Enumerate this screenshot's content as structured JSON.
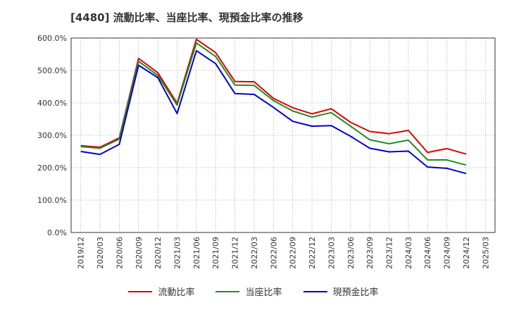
{
  "chart_data": {
    "type": "line",
    "title": "[4480]  流動比率、当座比率、現預金比率の推移",
    "xlabel": "",
    "ylabel": "",
    "ylim": [
      0,
      600
    ],
    "grid": true,
    "legend_position": "bottom",
    "y_ticks": [
      "0.0%",
      "100.0%",
      "200.0%",
      "300.0%",
      "400.0%",
      "500.0%",
      "600.0%"
    ],
    "x_ticks": [
      "2019/12",
      "2020/03",
      "2020/06",
      "2020/09",
      "2020/12",
      "2021/03",
      "2021/06",
      "2021/09",
      "2021/12",
      "2022/03",
      "2022/06",
      "2022/09",
      "2022/12",
      "2023/03",
      "2023/06",
      "2023/09",
      "2023/12",
      "2024/03",
      "2024/06",
      "2024/09",
      "2024/12",
      "2025/03"
    ],
    "categories": [
      "2019/12",
      "2020/03",
      "2020/06",
      "2020/09",
      "2020/12",
      "2021/03",
      "2021/06",
      "2021/09",
      "2021/12",
      "2022/03",
      "2022/06",
      "2022/09",
      "2022/12",
      "2023/03",
      "2023/06",
      "2023/09",
      "2023/12",
      "2024/03",
      "2024/06",
      "2024/09",
      "2024/12"
    ],
    "series": [
      {
        "name": "流動比率",
        "color": "#dd0000",
        "values": [
          268,
          263,
          292,
          537,
          493,
          399,
          596,
          555,
          466,
          465,
          414,
          385,
          366,
          382,
          340,
          312,
          305,
          315,
          247,
          259,
          242
        ]
      },
      {
        "name": "当座比率",
        "color": "#228B22",
        "values": [
          265,
          260,
          288,
          528,
          485,
          393,
          585,
          543,
          455,
          454,
          407,
          375,
          356,
          370,
          328,
          286,
          274,
          285,
          224,
          224,
          208
        ]
      },
      {
        "name": "現預金比率",
        "color": "#0000cc",
        "values": [
          250,
          241,
          272,
          516,
          478,
          367,
          561,
          521,
          429,
          426,
          386,
          343,
          328,
          330,
          297,
          260,
          249,
          251,
          202,
          198,
          182
        ]
      }
    ]
  }
}
